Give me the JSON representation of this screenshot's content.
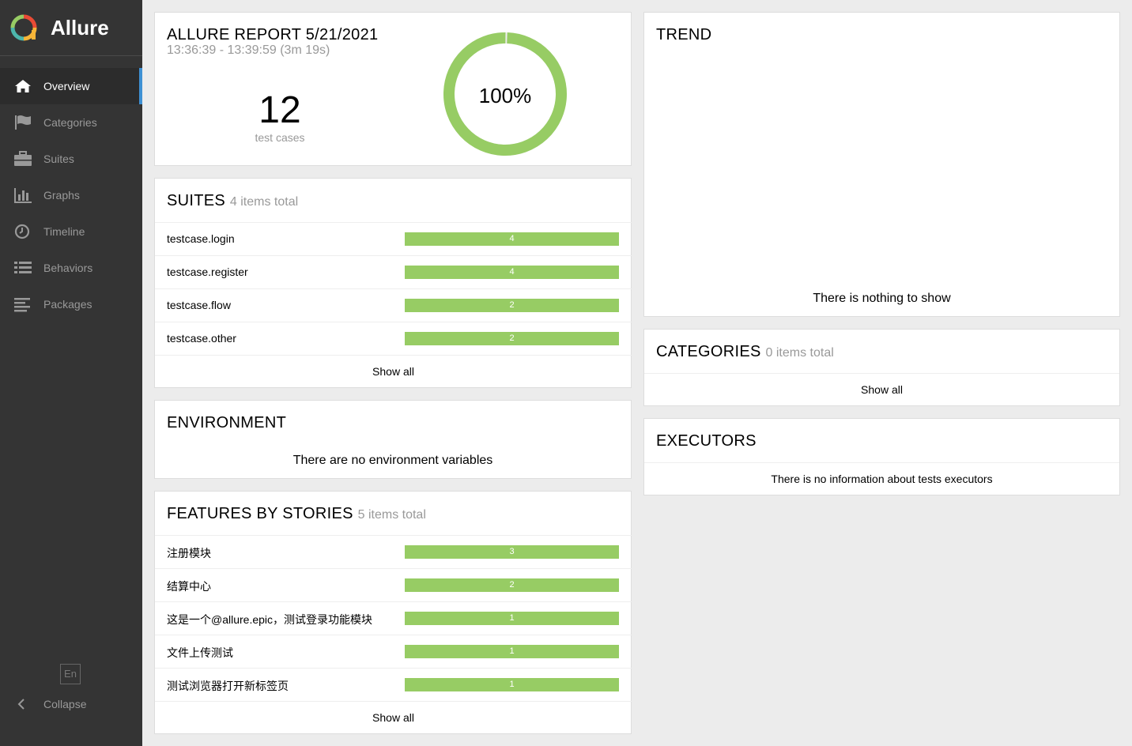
{
  "brand": {
    "name": "Allure"
  },
  "sidebar": {
    "items": [
      {
        "label": "Overview",
        "icon": "home-icon"
      },
      {
        "label": "Categories",
        "icon": "flag-icon"
      },
      {
        "label": "Suites",
        "icon": "briefcase-icon"
      },
      {
        "label": "Graphs",
        "icon": "bar-chart-icon"
      },
      {
        "label": "Timeline",
        "icon": "clock-icon"
      },
      {
        "label": "Behaviors",
        "icon": "list-icon"
      },
      {
        "label": "Packages",
        "icon": "align-left-icon"
      }
    ],
    "active_index": 0,
    "lang": "En",
    "collapse_label": "Collapse"
  },
  "summary": {
    "title": "ALLURE REPORT 5/21/2021",
    "time_range": "13:36:39 - 13:39:59 (3m 19s)",
    "test_count": "12",
    "test_count_label": "test cases",
    "pass_percent_text": "100%",
    "pass_fraction": 0.995
  },
  "suites": {
    "title": "SUITES",
    "subtitle": "4 items total",
    "items": [
      {
        "name": "testcase.login",
        "count": "4"
      },
      {
        "name": "testcase.register",
        "count": "4"
      },
      {
        "name": "testcase.flow",
        "count": "2"
      },
      {
        "name": "testcase.other",
        "count": "2"
      }
    ],
    "show_all": "Show all"
  },
  "environment": {
    "title": "ENVIRONMENT",
    "empty_message": "There are no environment variables"
  },
  "features": {
    "title": "FEATURES BY STORIES",
    "subtitle": "5 items total",
    "items": [
      {
        "name": "注册模块",
        "count": "3"
      },
      {
        "name": "结算中心",
        "count": "2"
      },
      {
        "name": "这是一个@allure.epic，测试登录功能模块",
        "count": "1"
      },
      {
        "name": "文件上传测试",
        "count": "1"
      },
      {
        "name": "测试浏览器打开新标签页",
        "count": "1"
      }
    ],
    "show_all": "Show all"
  },
  "trend": {
    "title": "TREND",
    "empty_message": "There is nothing to show"
  },
  "categories": {
    "title": "CATEGORIES",
    "subtitle": "0 items total",
    "show_all": "Show all"
  },
  "executors": {
    "title": "EXECUTORS",
    "empty_message": "There is no information about tests executors"
  },
  "colors": {
    "passed": "#97cc64",
    "sidebar_bg": "#343434",
    "active_indicator": "#3e90d3",
    "page_bg": "#ececec"
  }
}
